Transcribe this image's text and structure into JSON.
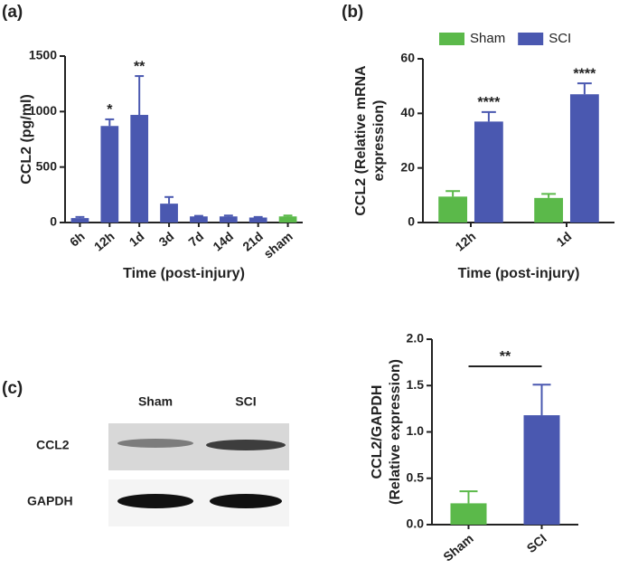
{
  "chart_data": [
    {
      "type": "bar",
      "panel_label": "(a)",
      "y_label": [
        "CCL2 (pg/ml)"
      ],
      "x_label": "Time (post-injury)",
      "categories": [
        "6h",
        "12h",
        "1d",
        "3d",
        "7d",
        "14d",
        "21d",
        "sham"
      ],
      "series": [
        {
          "colors": [
            "#4a58b0",
            "#4a58b0",
            "#4a58b0",
            "#4a58b0",
            "#4a58b0",
            "#4a58b0",
            "#4a58b0",
            "#5bb94a"
          ],
          "values": [
            40,
            870,
            970,
            170,
            55,
            55,
            45,
            55
          ],
          "errors": [
            10,
            60,
            350,
            60,
            5,
            8,
            5,
            8
          ],
          "significance": [
            null,
            "*",
            "**",
            null,
            null,
            null,
            null,
            null
          ]
        }
      ],
      "ylim": [
        0,
        1500
      ],
      "yticks": [
        0,
        500,
        1000,
        1500
      ]
    },
    {
      "type": "bar",
      "panel_label": "(b)",
      "y_label": [
        "CCL2 (Relative mRNA",
        "expression)"
      ],
      "x_label": "Time (post-injury)",
      "categories": [
        "12h",
        "1d"
      ],
      "series": [
        {
          "name": "Sham",
          "color": "#5bb94a",
          "values": [
            9.5,
            9
          ],
          "errors": [
            2,
            1.5
          ],
          "significance": [
            null,
            null
          ]
        },
        {
          "name": "SCI",
          "color": "#4a58b0",
          "values": [
            37,
            47
          ],
          "errors": [
            3.5,
            4
          ],
          "significance": [
            "****",
            "****"
          ]
        }
      ],
      "ylim": [
        0,
        60
      ],
      "yticks": [
        0,
        20,
        40,
        60
      ],
      "legend": "top"
    },
    {
      "type": "bar",
      "y_label": [
        "CCL2/GAPDH",
        "(Relative expression)"
      ],
      "categories": [
        "Sham",
        "SCI"
      ],
      "series": [
        {
          "colors": [
            "#5bb94a",
            "#4a58b0"
          ],
          "values": [
            0.23,
            1.18
          ],
          "errors": [
            0.13,
            0.33
          ]
        }
      ],
      "significance_bracket": "**",
      "ylim": [
        0,
        2.0
      ],
      "yticks": [
        {
          "value": 0,
          "label": "0.0"
        },
        0.5,
        {
          "value": 1,
          "label": "1.0"
        },
        1.5,
        {
          "value": 2,
          "label": "2.0"
        }
      ]
    }
  ],
  "blot": {
    "panel_label": "(c)",
    "columns": [
      "Sham",
      "SCI"
    ],
    "rows": [
      "CCL2",
      "GAPDH"
    ]
  }
}
